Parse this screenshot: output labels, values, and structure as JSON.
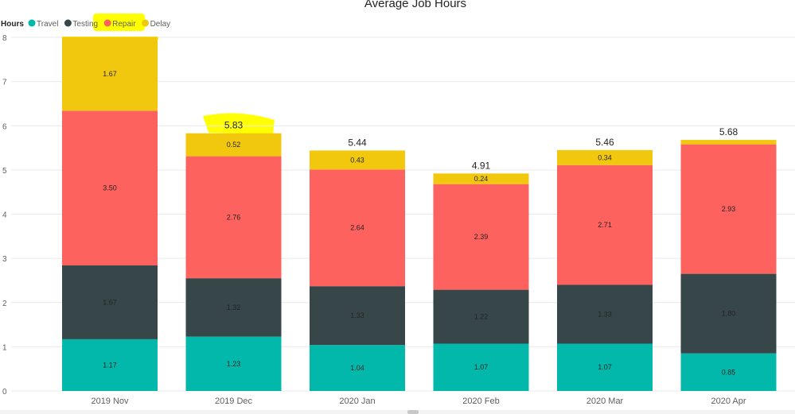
{
  "chart_data": {
    "type": "bar",
    "stacked": true,
    "title": "Average Job Hours",
    "legend": {
      "title": "Hours",
      "placement": "top-left",
      "entries": [
        "Travel",
        "Testing",
        "Repair",
        "Delay"
      ]
    },
    "categories": [
      "2019 Nov",
      "2019 Dec",
      "2020 Jan",
      "2020 Feb",
      "2020 Mar",
      "2020 Apr"
    ],
    "series": [
      {
        "name": "Travel",
        "color": "#01b8aa",
        "values": [
          1.17,
          1.23,
          1.04,
          1.07,
          1.07,
          0.85
        ]
      },
      {
        "name": "Testing",
        "color": "#374649",
        "values": [
          1.67,
          1.32,
          1.33,
          1.22,
          1.33,
          1.8
        ]
      },
      {
        "name": "Repair",
        "color": "#fd625e",
        "values": [
          3.5,
          2.76,
          2.64,
          2.39,
          2.71,
          2.93
        ]
      },
      {
        "name": "Delay",
        "color": "#f2c80f",
        "values": [
          1.67,
          0.52,
          0.43,
          0.24,
          0.34,
          0.1
        ]
      }
    ],
    "segment_labels": [
      [
        "1.17",
        "1.67",
        "3.50",
        "1.67"
      ],
      [
        "1.23",
        "1.32",
        "2.76",
        "0.52"
      ],
      [
        "1.04",
        "1.33",
        "2.64",
        "0.43"
      ],
      [
        "1.07",
        "1.22",
        "2.39",
        "0.24"
      ],
      [
        "1.07",
        "1.33",
        "2.71",
        "0.34"
      ],
      [
        "0.85",
        "1.80",
        "2.93",
        ""
      ]
    ],
    "totals": [
      "",
      "5.83",
      "5.44",
      "4.91",
      "5.46",
      "5.68"
    ],
    "y_ticks": [
      0,
      1,
      2,
      3,
      4,
      5,
      6,
      7,
      8
    ],
    "ylim": [
      0,
      8
    ],
    "grid": true,
    "highlights": {
      "color": "#ffff00",
      "targets": [
        "legend-repair-delay",
        "total-2019-dec",
        "bar-2019-nov"
      ]
    }
  }
}
